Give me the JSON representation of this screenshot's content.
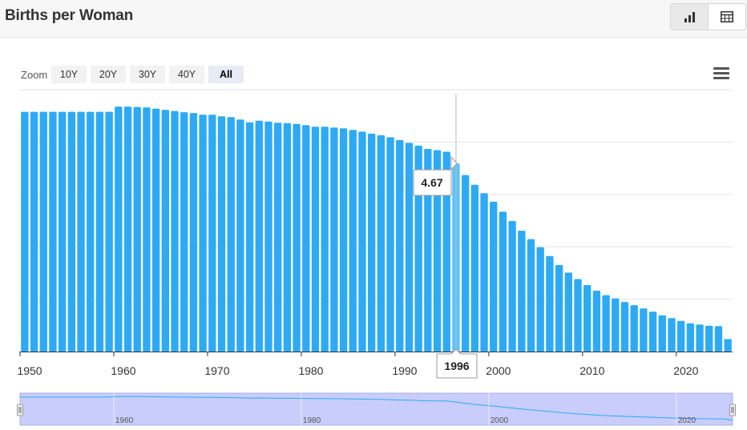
{
  "header": {
    "title": "Births per Woman"
  },
  "toolbar": {
    "chart_view_icon": "bar-chart-icon",
    "table_view_icon": "table-icon"
  },
  "zoom": {
    "label": "Zoom",
    "buttons": [
      "10Y",
      "20Y",
      "30Y",
      "40Y",
      "All"
    ],
    "active": "All"
  },
  "menu_icon": "hamburger-menu-icon",
  "tooltip": {
    "value": "4.67",
    "year": "1996"
  },
  "colors": {
    "bar": "#2eaaf5",
    "bar_hover": "#5ec2fb",
    "navigator_fill": "#c8cdfb"
  },
  "chart_data": {
    "type": "bar",
    "x": [
      1950,
      1951,
      1952,
      1953,
      1954,
      1955,
      1956,
      1957,
      1958,
      1959,
      1960,
      1961,
      1962,
      1963,
      1964,
      1965,
      1966,
      1967,
      1968,
      1969,
      1970,
      1971,
      1972,
      1973,
      1974,
      1975,
      1976,
      1977,
      1978,
      1979,
      1980,
      1981,
      1982,
      1983,
      1984,
      1985,
      1986,
      1987,
      1988,
      1989,
      1990,
      1991,
      1992,
      1993,
      1994,
      1995,
      1996,
      1997,
      1998,
      1999,
      2000,
      2001,
      2002,
      2003,
      2004,
      2005,
      2006,
      2007,
      2008,
      2009,
      2010,
      2011,
      2012,
      2013,
      2014,
      2015,
      2016,
      2017,
      2018,
      2019,
      2020,
      2021,
      2022,
      2023,
      2024,
      2025
    ],
    "values": [
      5.95,
      5.95,
      5.95,
      5.95,
      5.95,
      5.95,
      5.95,
      5.95,
      5.95,
      5.95,
      6.08,
      6.08,
      6.07,
      6.06,
      6.03,
      6.0,
      5.97,
      5.94,
      5.92,
      5.88,
      5.88,
      5.84,
      5.82,
      5.76,
      5.69,
      5.73,
      5.71,
      5.68,
      5.67,
      5.65,
      5.62,
      5.58,
      5.58,
      5.56,
      5.54,
      5.5,
      5.46,
      5.41,
      5.37,
      5.32,
      5.25,
      5.18,
      5.11,
      5.03,
      5.0,
      4.96,
      4.67,
      4.38,
      4.14,
      3.93,
      3.72,
      3.47,
      3.24,
      3.0,
      2.79,
      2.59,
      2.37,
      2.15,
      1.96,
      1.8,
      1.65,
      1.51,
      1.4,
      1.32,
      1.23,
      1.15,
      1.07,
      0.99,
      0.9,
      0.83,
      0.76,
      0.7,
      0.67,
      0.64,
      0.63,
      0.31
    ],
    "xticks": [
      1950,
      1960,
      1970,
      1980,
      1990,
      2000,
      2010,
      2020
    ],
    "navigator_ticks": [
      1960,
      1980,
      2000,
      2020
    ],
    "ylim": [
      0,
      6.5
    ],
    "grid": true,
    "title": "Births per Woman",
    "xlabel": "",
    "ylabel": ""
  }
}
